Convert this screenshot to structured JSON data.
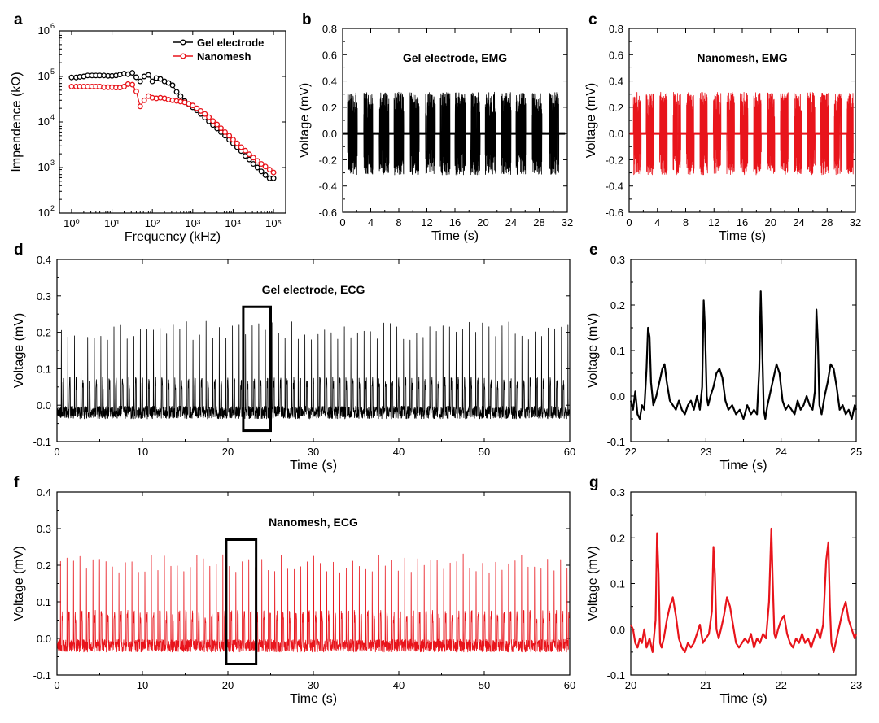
{
  "colors": {
    "black": "#000000",
    "red": "#e8141b",
    "axis": "#000000"
  },
  "chart_data": [
    {
      "panel": "a",
      "type": "line",
      "xlabel": "Frequency (kHz)",
      "ylabel": "Impendence (kΩ)",
      "xscale": "log",
      "yscale": "log",
      "xlim": [
        0.5,
        200000
      ],
      "ylim": [
        100,
        1000000
      ],
      "xticks": [
        1,
        10,
        100,
        1000,
        10000,
        100000
      ],
      "xtick_labels": [
        "10⁰",
        "10¹",
        "10²",
        "10³",
        "10⁴",
        "10⁵"
      ],
      "yticks": [
        100,
        1000,
        10000,
        100000,
        1000000
      ],
      "ytick_labels": [
        "10²",
        "10³",
        "10⁴",
        "10⁵",
        "10⁶"
      ],
      "legend": "top-right",
      "series": [
        {
          "name": "Gel electrode",
          "color": "#000000",
          "x": [
            1,
            1.3,
            1.6,
            2,
            2.5,
            3.2,
            4,
            5,
            6.3,
            8,
            10,
            12.6,
            15.8,
            20,
            25,
            32,
            40,
            50,
            63,
            80,
            100,
            126,
            158,
            200,
            251,
            316,
            400,
            500,
            630,
            800,
            1000,
            1260,
            1580,
            2000,
            2510,
            3160,
            4000,
            5000,
            6300,
            8000,
            10000,
            12600,
            15800,
            20000,
            25100,
            31600,
            40000,
            50000,
            63000,
            80000,
            100000
          ],
          "y": [
            95000,
            95000,
            98000,
            100000,
            105000,
            105000,
            105000,
            105000,
            105000,
            103000,
            103000,
            105000,
            110000,
            115000,
            112000,
            120000,
            96000,
            78000,
            100000,
            108000,
            78000,
            92000,
            88000,
            78000,
            72000,
            64000,
            46000,
            37000,
            29000,
            24500,
            21000,
            18000,
            15000,
            12500,
            10300,
            8600,
            7200,
            6000,
            5000,
            4100,
            3400,
            2800,
            2300,
            1800,
            1500,
            1200,
            1000,
            820,
            680,
            580,
            580
          ]
        },
        {
          "name": "Nanomesh",
          "color": "#e8141b",
          "x": [
            1,
            1.3,
            1.6,
            2,
            2.5,
            3.2,
            4,
            5,
            6.3,
            8,
            10,
            12.6,
            15.8,
            20,
            25,
            32,
            40,
            50,
            63,
            80,
            100,
            126,
            158,
            200,
            251,
            316,
            400,
            500,
            630,
            800,
            1000,
            1260,
            1580,
            2000,
            2510,
            3160,
            4000,
            5000,
            6300,
            8000,
            10000,
            12600,
            15800,
            20000,
            25100,
            31600,
            40000,
            50000,
            63000,
            80000,
            100000
          ],
          "y": [
            60000,
            60000,
            60000,
            60000,
            60000,
            60000,
            60000,
            60000,
            58000,
            58000,
            58000,
            57000,
            57000,
            60000,
            68000,
            66000,
            47000,
            22000,
            30000,
            37000,
            34000,
            33000,
            34000,
            33000,
            31000,
            30000,
            29000,
            28000,
            27000,
            25000,
            23000,
            20000,
            17500,
            15000,
            12700,
            10500,
            8800,
            7300,
            6000,
            5000,
            4100,
            3400,
            2800,
            2350,
            1950,
            1650,
            1400,
            1200,
            1050,
            900,
            780
          ]
        }
      ]
    },
    {
      "panel": "b",
      "type": "line",
      "title": "Gel electrode, EMG",
      "xlabel": "Time (s)",
      "ylabel": "Voltage (mV)",
      "xlim": [
        0,
        32
      ],
      "ylim": [
        -0.6,
        0.8
      ],
      "xticks": [
        0,
        4,
        8,
        12,
        16,
        20,
        24,
        28,
        32
      ],
      "yticks": [
        -0.6,
        -0.4,
        -0.2,
        0.0,
        0.2,
        0.4,
        0.6,
        0.8
      ],
      "ytick_labels": [
        "-0.6",
        "-0.4",
        "-0.2",
        "0.0",
        "0.2",
        "0.4",
        "0.6",
        "0.8"
      ],
      "series": [
        {
          "color": "#000000",
          "bursts": [
            [
              0.7,
              2.1
            ],
            [
              3.0,
              4.3
            ],
            [
              5.2,
              6.6
            ],
            [
              7.3,
              8.7
            ],
            [
              9.6,
              10.9
            ],
            [
              11.8,
              13.2
            ],
            [
              13.9,
              15.3
            ],
            [
              16.0,
              17.5
            ],
            [
              18.2,
              19.6
            ],
            [
              20.3,
              21.8
            ],
            [
              22.6,
              24.0
            ],
            [
              24.7,
              26.1
            ],
            [
              27.0,
              28.4
            ],
            [
              29.4,
              30.8
            ]
          ],
          "burst_amplitude": 0.3,
          "peak_max": 0.42,
          "peak_min": -0.33,
          "baseline": 0.0
        }
      ]
    },
    {
      "panel": "c",
      "type": "line",
      "title": "Nanomesh, EMG",
      "xlabel": "Time (s)",
      "ylabel": "Voltage (mV)",
      "xlim": [
        0,
        32
      ],
      "ylim": [
        -0.6,
        0.8
      ],
      "xticks": [
        0,
        4,
        8,
        12,
        16,
        20,
        24,
        28,
        32
      ],
      "yticks": [
        -0.6,
        -0.4,
        -0.2,
        0.0,
        0.2,
        0.4,
        0.6,
        0.8
      ],
      "ytick_labels": [
        "-0.6",
        "-0.4",
        "-0.2",
        "0.0",
        "0.2",
        "0.4",
        "0.6",
        "0.8"
      ],
      "series": [
        {
          "color": "#e8141b",
          "bursts": [
            [
              0.6,
              1.7
            ],
            [
              2.4,
              3.5
            ],
            [
              4.3,
              5.4
            ],
            [
              6.2,
              7.3
            ],
            [
              8.1,
              9.2
            ],
            [
              10.0,
              11.1
            ],
            [
              11.9,
              13.0
            ],
            [
              13.8,
              14.9
            ],
            [
              15.7,
              16.8
            ],
            [
              17.6,
              18.7
            ],
            [
              19.5,
              20.6
            ],
            [
              21.4,
              22.5
            ],
            [
              23.3,
              24.4
            ],
            [
              25.2,
              26.3
            ],
            [
              27.1,
              28.2
            ],
            [
              29.0,
              30.1
            ],
            [
              30.8,
              31.8
            ]
          ],
          "burst_amplitude": 0.3,
          "peak_max": 0.4,
          "peak_min": -0.42,
          "baseline": 0.0
        }
      ]
    },
    {
      "panel": "d",
      "type": "line",
      "title": "Gel electrode, ECG",
      "xlabel": "Time (s)",
      "ylabel": "Voltage (mV)",
      "xlim": [
        0,
        60
      ],
      "ylim": [
        -0.1,
        0.4
      ],
      "xticks": [
        0,
        10,
        20,
        30,
        40,
        50,
        60
      ],
      "yticks": [
        -0.1,
        0.0,
        0.1,
        0.2,
        0.3,
        0.4
      ],
      "ytick_labels": [
        "-0.1",
        "0.0",
        "0.1",
        "0.2",
        "0.3",
        "0.4"
      ],
      "highlight_box": {
        "x0": 21.8,
        "x1": 25.0,
        "y0": -0.07,
        "y1": 0.27
      },
      "series": [
        {
          "color": "#000000",
          "beat_period_s": 0.77,
          "first_beat_s": 0.5,
          "r_peak_mV": 0.21,
          "t_wave_mV": 0.07,
          "baseline_mV": -0.02
        }
      ]
    },
    {
      "panel": "e",
      "type": "line",
      "xlabel": "Time (s)",
      "ylabel": "Voltage (mV)",
      "xlim": [
        22,
        25
      ],
      "ylim": [
        -0.1,
        0.3
      ],
      "xticks": [
        22,
        23,
        24,
        25
      ],
      "yticks": [
        -0.1,
        0.0,
        0.1,
        0.2,
        0.3
      ],
      "ytick_labels": [
        "-0.1",
        "0.0",
        "0.1",
        "0.2",
        "0.3"
      ],
      "series": [
        {
          "color": "#000000",
          "x": [
            22.0,
            22.03,
            22.06,
            22.09,
            22.12,
            22.15,
            22.18,
            22.21,
            22.23,
            22.25,
            22.27,
            22.3,
            22.34,
            22.38,
            22.42,
            22.45,
            22.48,
            22.52,
            22.56,
            22.6,
            22.64,
            22.68,
            22.72,
            22.76,
            22.8,
            22.84,
            22.88,
            22.92,
            22.95,
            22.97,
            22.99,
            23.01,
            23.03,
            23.06,
            23.1,
            23.14,
            23.18,
            23.22,
            23.26,
            23.3,
            23.35,
            23.4,
            23.45,
            23.5,
            23.55,
            23.6,
            23.64,
            23.68,
            23.71,
            23.73,
            23.75,
            23.77,
            23.79,
            23.82,
            23.86,
            23.9,
            23.94,
            23.98,
            24.02,
            24.06,
            24.1,
            24.14,
            24.18,
            24.22,
            24.26,
            24.3,
            24.34,
            24.38,
            24.42,
            24.45,
            24.47,
            24.49,
            24.51,
            24.54,
            24.58,
            24.62,
            24.66,
            24.7,
            24.74,
            24.78,
            24.82,
            24.86,
            24.9,
            24.94,
            24.98,
            25.0
          ],
          "y": [
            -0.01,
            -0.03,
            0.01,
            -0.04,
            -0.05,
            -0.02,
            -0.03,
            0.06,
            0.15,
            0.13,
            0.03,
            -0.02,
            0.0,
            0.03,
            0.06,
            0.07,
            0.03,
            -0.01,
            -0.02,
            -0.03,
            -0.01,
            -0.03,
            -0.04,
            -0.02,
            -0.01,
            -0.03,
            0.0,
            -0.03,
            0.02,
            0.21,
            0.14,
            0.0,
            -0.02,
            0.0,
            0.02,
            0.05,
            0.06,
            0.04,
            -0.01,
            -0.03,
            -0.02,
            -0.04,
            -0.03,
            -0.05,
            -0.02,
            -0.04,
            -0.03,
            -0.04,
            0.06,
            0.23,
            0.1,
            -0.03,
            -0.05,
            -0.02,
            0.01,
            0.04,
            0.07,
            0.05,
            -0.01,
            -0.03,
            -0.02,
            -0.03,
            -0.04,
            -0.01,
            -0.03,
            -0.02,
            0.0,
            -0.02,
            -0.03,
            0.01,
            0.19,
            0.12,
            -0.02,
            -0.04,
            0.0,
            0.03,
            0.07,
            0.06,
            0.02,
            -0.03,
            -0.02,
            -0.04,
            -0.03,
            -0.05,
            -0.02,
            -0.03
          ]
        }
      ]
    },
    {
      "panel": "f",
      "type": "line",
      "title": "Nanomesh, ECG",
      "xlabel": "Time (s)",
      "ylabel": "Voltage (mV)",
      "xlim": [
        0,
        60
      ],
      "ylim": [
        -0.1,
        0.4
      ],
      "xticks": [
        0,
        10,
        20,
        30,
        40,
        50,
        60
      ],
      "yticks": [
        -0.1,
        0.0,
        0.1,
        0.2,
        0.3,
        0.4
      ],
      "ytick_labels": [
        "-0.1",
        "0.0",
        "0.1",
        "0.2",
        "0.3",
        "0.4"
      ],
      "highlight_box": {
        "x0": 19.8,
        "x1": 23.3,
        "y0": -0.07,
        "y1": 0.27
      },
      "series": [
        {
          "color": "#e8141b",
          "beat_period_s": 0.76,
          "first_beat_s": 0.4,
          "r_peak_mV": 0.21,
          "t_wave_mV": 0.07,
          "baseline_mV": -0.02
        }
      ]
    },
    {
      "panel": "g",
      "type": "line",
      "xlabel": "Time (s)",
      "ylabel": "Voltage (mV)",
      "xlim": [
        20,
        23
      ],
      "ylim": [
        -0.1,
        0.3
      ],
      "xticks": [
        20,
        21,
        22,
        23
      ],
      "yticks": [
        -0.1,
        0.0,
        0.1,
        0.2,
        0.3
      ],
      "ytick_labels": [
        "-0.1",
        "0.0",
        "0.1",
        "0.2",
        "0.3"
      ],
      "series": [
        {
          "color": "#e8141b",
          "x": [
            20.0,
            20.03,
            20.06,
            20.09,
            20.12,
            20.15,
            20.18,
            20.21,
            20.25,
            20.29,
            20.33,
            20.35,
            20.37,
            20.39,
            20.41,
            20.44,
            20.48,
            20.52,
            20.56,
            20.6,
            20.64,
            20.68,
            20.72,
            20.76,
            20.8,
            20.84,
            20.88,
            20.92,
            20.96,
            21.0,
            21.04,
            21.08,
            21.1,
            21.12,
            21.14,
            21.17,
            21.2,
            21.24,
            21.28,
            21.32,
            21.36,
            21.4,
            21.44,
            21.48,
            21.52,
            21.56,
            21.6,
            21.64,
            21.68,
            21.72,
            21.76,
            21.8,
            21.84,
            21.87,
            21.89,
            21.91,
            21.93,
            21.96,
            22.0,
            22.04,
            22.08,
            22.12,
            22.16,
            22.2,
            22.24,
            22.28,
            22.32,
            22.36,
            22.4,
            22.44,
            22.48,
            22.52,
            22.56,
            22.6,
            22.63,
            22.65,
            22.67,
            22.7,
            22.74,
            22.78,
            22.82,
            22.86,
            22.9,
            22.94,
            22.98,
            23.0
          ],
          "y": [
            0.01,
            0.0,
            -0.03,
            -0.04,
            -0.02,
            -0.03,
            0.0,
            -0.04,
            -0.02,
            -0.05,
            0.02,
            0.21,
            0.12,
            -0.03,
            -0.04,
            -0.02,
            0.02,
            0.05,
            0.07,
            0.03,
            -0.02,
            -0.04,
            -0.05,
            -0.03,
            -0.04,
            -0.03,
            -0.01,
            0.01,
            -0.03,
            -0.02,
            -0.01,
            0.04,
            0.18,
            0.12,
            0.0,
            -0.02,
            0.0,
            0.03,
            0.07,
            0.05,
            0.01,
            -0.03,
            -0.04,
            -0.03,
            -0.02,
            -0.03,
            -0.01,
            -0.04,
            -0.02,
            -0.03,
            -0.01,
            -0.02,
            0.06,
            0.22,
            0.1,
            -0.01,
            -0.02,
            0.0,
            0.02,
            0.03,
            -0.01,
            -0.03,
            -0.04,
            -0.02,
            -0.03,
            -0.01,
            -0.03,
            -0.02,
            -0.04,
            -0.02,
            0.0,
            -0.02,
            0.01,
            0.15,
            0.19,
            0.05,
            -0.03,
            -0.05,
            -0.02,
            0.01,
            0.04,
            0.06,
            0.02,
            0.0,
            -0.02,
            -0.01
          ]
        }
      ]
    }
  ]
}
